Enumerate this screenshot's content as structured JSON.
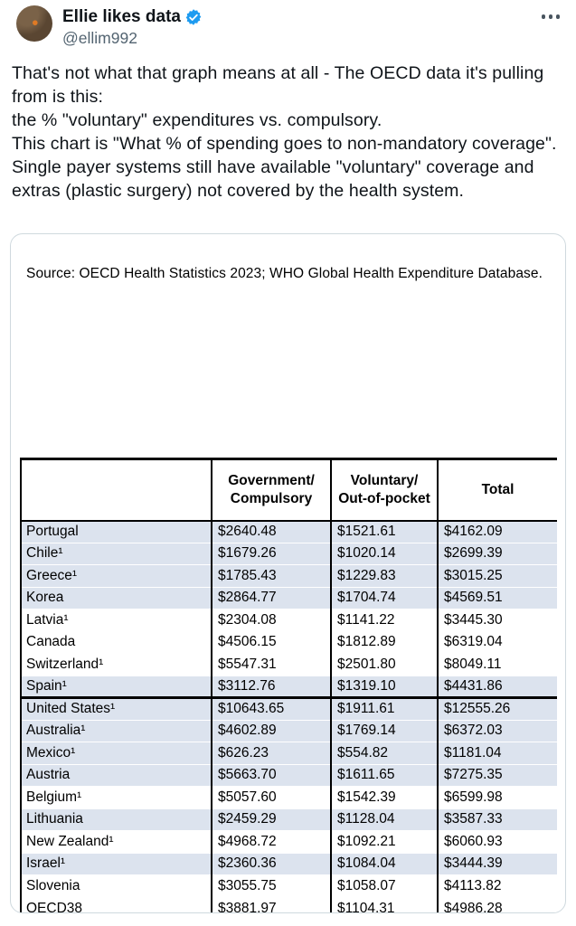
{
  "post": {
    "author": {
      "display_name": "Ellie likes data",
      "handle": "@ellim992",
      "verified": true
    },
    "body_paragraphs": [
      "That's not what that graph means at all - The OECD data it's pulling from is this:",
      "the % \"voluntary\" expenditures vs. compulsory.",
      "This chart is \"What % of spending goes to non-mandatory coverage\". Single payer systems still have available \"voluntary\" coverage and extras (plastic surgery) not covered by the health system."
    ]
  },
  "image_card": {
    "source_note": "Source: OECD Health Statistics 2023; WHO Global Health Expenditure Database.",
    "table": {
      "columns": [
        "",
        "Government/\nCompulsory",
        "Voluntary/\nOut-of-pocket",
        "Total"
      ],
      "rows": [
        {
          "country": "Portugal",
          "values": [
            "$2640.48",
            "$1521.61",
            "$4162.09"
          ],
          "shaded": true,
          "section_start": false
        },
        {
          "country": "Chile¹",
          "values": [
            "$1679.26",
            "$1020.14",
            "$2699.39"
          ],
          "shaded": true,
          "section_start": false
        },
        {
          "country": "Greece¹",
          "values": [
            "$1785.43",
            "$1229.83",
            "$3015.25"
          ],
          "shaded": true,
          "section_start": false
        },
        {
          "country": "Korea",
          "values": [
            "$2864.77",
            "$1704.74",
            "$4569.51"
          ],
          "shaded": true,
          "section_start": false
        },
        {
          "country": "Latvia¹",
          "values": [
            "$2304.08",
            "$1141.22",
            "$3445.30"
          ],
          "shaded": false,
          "section_start": false
        },
        {
          "country": "Canada",
          "values": [
            "$4506.15",
            "$1812.89",
            "$6319.04"
          ],
          "shaded": false,
          "section_start": false
        },
        {
          "country": "Switzerland¹",
          "values": [
            "$5547.31",
            "$2501.80",
            "$8049.11"
          ],
          "shaded": false,
          "section_start": false
        },
        {
          "country": "Spain¹",
          "values": [
            "$3112.76",
            "$1319.10",
            "$4431.86"
          ],
          "shaded": true,
          "section_start": false
        },
        {
          "country": "United States¹",
          "values": [
            "$10643.65",
            "$1911.61",
            "$12555.26"
          ],
          "shaded": true,
          "section_start": true
        },
        {
          "country": "Australia¹",
          "values": [
            "$4602.89",
            "$1769.14",
            "$6372.03"
          ],
          "shaded": true,
          "section_start": false
        },
        {
          "country": "Mexico¹",
          "values": [
            "$626.23",
            "$554.82",
            "$1181.04"
          ],
          "shaded": true,
          "section_start": false
        },
        {
          "country": "Austria",
          "values": [
            "$5663.70",
            "$1611.65",
            "$7275.35"
          ],
          "shaded": true,
          "section_start": false
        },
        {
          "country": "Belgium¹",
          "values": [
            "$5057.60",
            "$1542.39",
            "$6599.98"
          ],
          "shaded": false,
          "section_start": false
        },
        {
          "country": "Lithuania",
          "values": [
            "$2459.29",
            "$1128.04",
            "$3587.33"
          ],
          "shaded": true,
          "section_start": false
        },
        {
          "country": "New Zealand¹",
          "values": [
            "$4968.72",
            "$1092.21",
            "$6060.93"
          ],
          "shaded": false,
          "section_start": false
        },
        {
          "country": "Israel¹",
          "values": [
            "$2360.36",
            "$1084.04",
            "$3444.39"
          ],
          "shaded": true,
          "section_start": false
        },
        {
          "country": "Slovenia",
          "values": [
            "$3055.75",
            "$1058.07",
            "$4113.82"
          ],
          "shaded": false,
          "section_start": false
        },
        {
          "country": "OECD38",
          "values": [
            "$3881.97",
            "$1104.31",
            "$4986.28"
          ],
          "shaded": false,
          "section_start": false
        }
      ]
    }
  },
  "colors": {
    "accent_blue": "#1d9bf0",
    "text_primary": "#0f1419",
    "text_secondary": "#536471",
    "card_border": "#cfd9de",
    "row_shaded": "#dce3ee",
    "table_border": "#000000"
  }
}
